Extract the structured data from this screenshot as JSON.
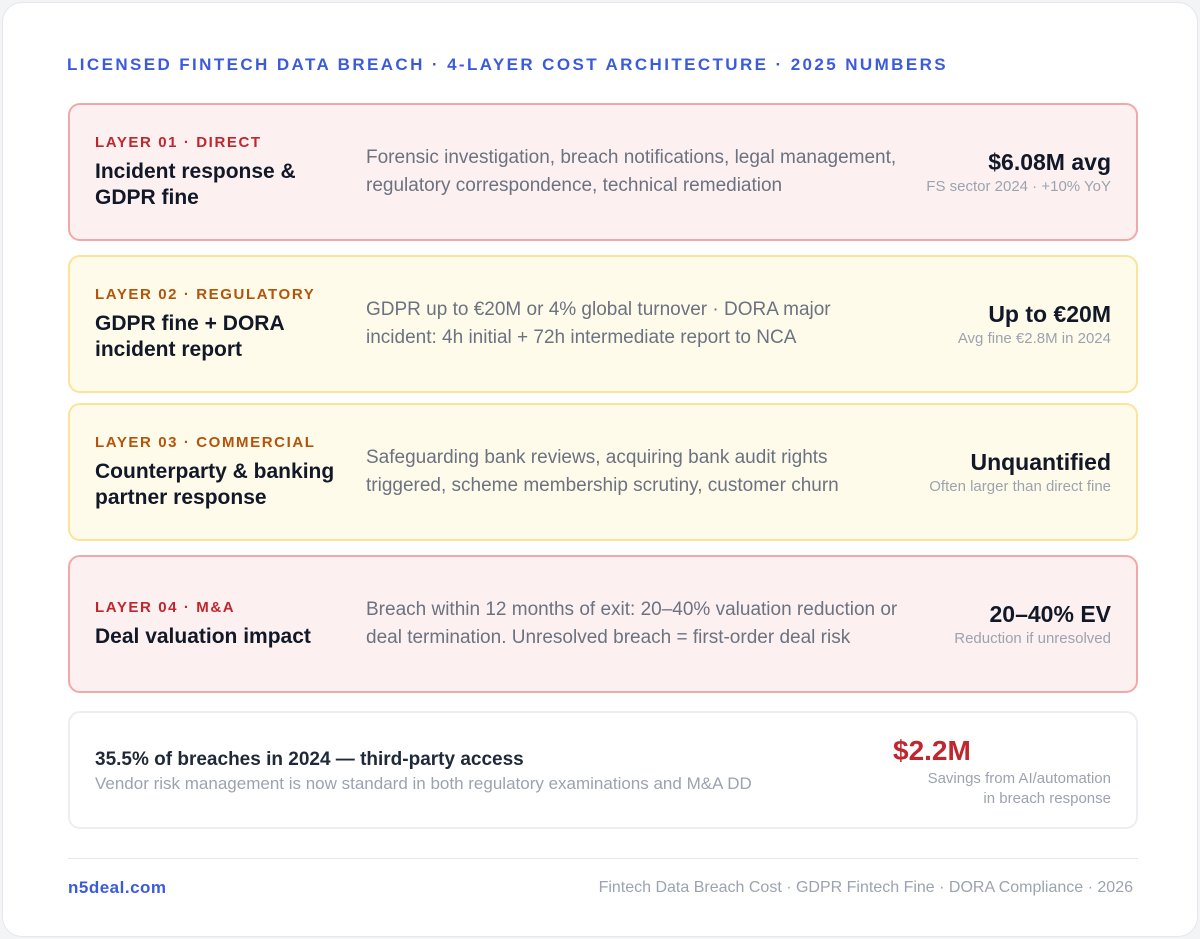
{
  "header": {
    "title": "LICENSED FINTECH DATA BREACH · 4-LAYER COST ARCHITECTURE · 2025 NUMBERS"
  },
  "layers": [
    {
      "tag": "LAYER 01 · DIRECT",
      "title": "Incident response & GDPR fine",
      "description": "Forensic investigation, breach notifications, legal management, regulatory correspondence, technical remediation",
      "value": "$6.08M avg",
      "note": "FS sector 2024 · +10% YoY",
      "tone": "red"
    },
    {
      "tag": "LAYER 02 · REGULATORY",
      "title": "GDPR fine + DORA incident report",
      "description": "GDPR up to €20M or 4% global turnover · DORA major incident: 4h initial + 72h intermediate report to NCA",
      "value": "Up to €20M",
      "note": "Avg fine €2.8M in 2024",
      "tone": "yellow"
    },
    {
      "tag": "LAYER 03 · COMMERCIAL",
      "title": "Counterparty & banking partner response",
      "description": "Safeguarding bank reviews, acquiring bank audit rights triggered, scheme membership scrutiny, customer churn",
      "value": "Unquantified",
      "note": "Often larger than direct fine",
      "tone": "yellow"
    },
    {
      "tag": "LAYER 04 · M&A",
      "title": "Deal valuation impact",
      "description": "Breach within 12 months of exit: 20–40% valuation reduction or deal termination. Unresolved breach = first-order deal risk",
      "value": "20–40% EV",
      "note": "Reduction if unresolved",
      "tone": "red"
    }
  ],
  "summary": {
    "title": "35.5% of breaches in 2024 — third-party access",
    "subtitle": "Vendor risk management is now standard in both regulatory examinations and M&A DD",
    "value": "$2.2M",
    "note_line1": "Savings from AI/automation",
    "note_line2": "in breach response"
  },
  "footer": {
    "brand": "n5deal.com",
    "tags": "Fintech Data Breach Cost · GDPR Fintech Fine · DORA Compliance · 2026"
  },
  "colors": {
    "accent_blue": "#3b5bdb",
    "red": "#c0262d",
    "amber": "#b45309",
    "red_bg": "#fdf0f0",
    "yellow_bg": "#fffbeb"
  }
}
